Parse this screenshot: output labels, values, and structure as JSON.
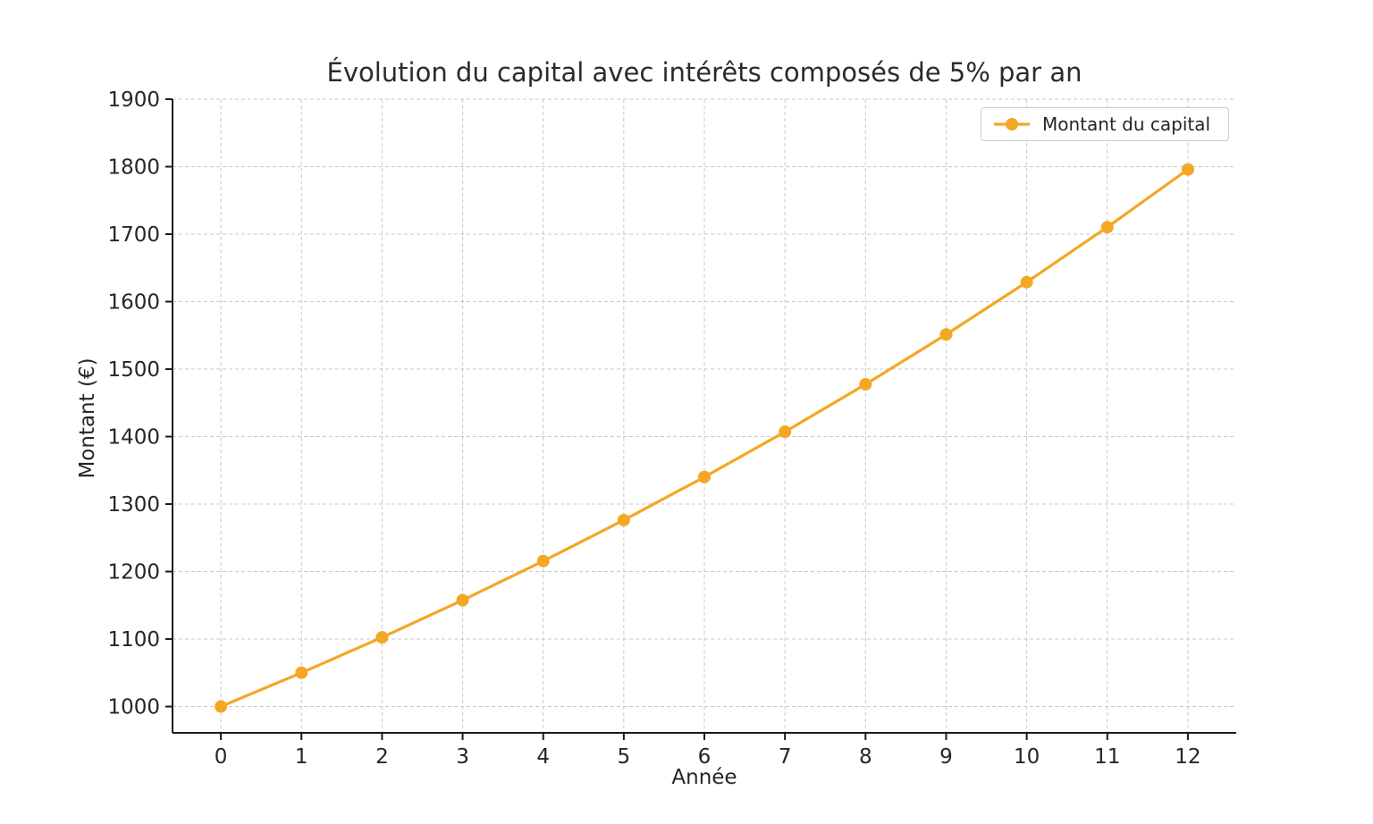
{
  "chart_data": {
    "type": "line",
    "title": "Évolution du capital avec intérêts composés de 5% par an",
    "xlabel": "Année",
    "ylabel": "Montant (€)",
    "grid": true,
    "legend_position": "upper right",
    "x": [
      0,
      1,
      2,
      3,
      4,
      5,
      6,
      7,
      8,
      9,
      10,
      11,
      12
    ],
    "series": [
      {
        "name": "Montant du capital",
        "color": "#F5A623",
        "marker": "circle",
        "values": [
          1000.0,
          1050.0,
          1102.5,
          1157.63,
          1215.51,
          1276.28,
          1340.1,
          1407.1,
          1477.46,
          1551.33,
          1628.89,
          1710.34,
          1795.86
        ]
      }
    ],
    "xlim": [
      -0.6,
      12.6
    ],
    "ylim": [
      961,
      1900
    ],
    "xticks": [
      0,
      1,
      2,
      3,
      4,
      5,
      6,
      7,
      8,
      9,
      10,
      11,
      12
    ],
    "yticks": [
      1000,
      1100,
      1200,
      1300,
      1400,
      1500,
      1600,
      1700,
      1800,
      1900
    ],
    "colors": {
      "grid": "#c8c8c8",
      "spine": "#1a1a1a",
      "tick_text": "#262626"
    }
  }
}
